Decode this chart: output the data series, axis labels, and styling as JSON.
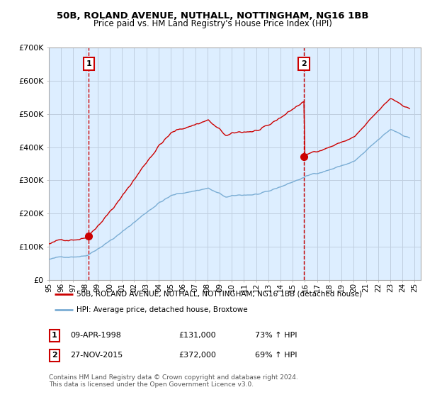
{
  "title": "50B, ROLAND AVENUE, NUTHALL, NOTTINGHAM, NG16 1BB",
  "subtitle": "Price paid vs. HM Land Registry's House Price Index (HPI)",
  "ylim": [
    0,
    700000
  ],
  "yticks": [
    0,
    100000,
    200000,
    300000,
    400000,
    500000,
    600000,
    700000
  ],
  "ytick_labels": [
    "£0",
    "£100K",
    "£200K",
    "£300K",
    "£400K",
    "£500K",
    "£600K",
    "£700K"
  ],
  "xlim_start": 1995.0,
  "xlim_end": 2025.5,
  "sale1_year": 1998.27,
  "sale1_price": 131000,
  "sale1_label": "1",
  "sale2_year": 2015.9,
  "sale2_price": 372000,
  "sale2_label": "2",
  "red_line_color": "#cc0000",
  "blue_line_color": "#7aadd4",
  "vline_color": "#cc0000",
  "grid_color": "#c0cfe0",
  "plot_bg_color": "#ddeeff",
  "legend_line1": "50B, ROLAND AVENUE, NUTHALL, NOTTINGHAM, NG16 1BB (detached house)",
  "legend_line2": "HPI: Average price, detached house, Broxtowe",
  "footer": "Contains HM Land Registry data © Crown copyright and database right 2024.\nThis data is licensed under the Open Government Licence v3.0."
}
